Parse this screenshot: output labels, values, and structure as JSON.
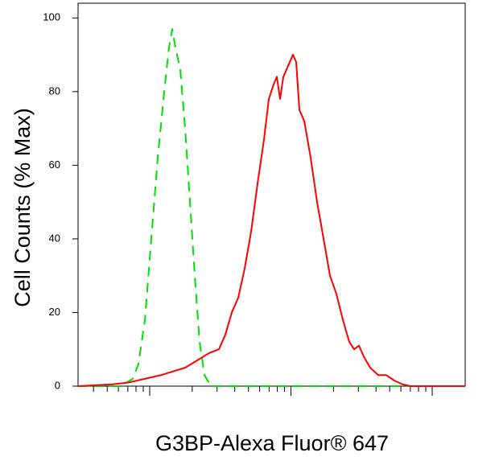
{
  "chart_data": {
    "type": "line",
    "xlabel": "G3BP-Alexa Fluor® 647",
    "ylabel": "Cell Counts (% Max)",
    "xlog": true,
    "xlim": [
      311,
      171200
    ],
    "xticks": [
      1000,
      10000,
      100000
    ],
    "xtick_labels": false,
    "xminorticks": [
      400,
      500,
      600,
      700,
      800,
      900,
      2000,
      3000,
      4000,
      5000,
      6000,
      7000,
      8000,
      9000,
      20000,
      30000,
      40000,
      50000,
      60000,
      70000,
      80000,
      90000
    ],
    "ylim": [
      0,
      104
    ],
    "yticks": [
      0,
      20,
      40,
      60,
      80,
      100
    ],
    "series": [
      {
        "color": "#00e000",
        "dash": true,
        "x": [
          311,
          624,
          759,
          832,
          925,
          1026,
          1140,
          1267,
          1370,
          1444,
          1521,
          1646,
          1781,
          1928,
          2085,
          2255,
          2441,
          2710,
          4462,
          171200
        ],
        "values": [
          0,
          0,
          2,
          6,
          18,
          40,
          62,
          80,
          92,
          97,
          92,
          86,
          70,
          50,
          30,
          12,
          3,
          0,
          0,
          0
        ]
      },
      {
        "color": "#ff0000",
        "dash": false,
        "x": [
          311,
          547,
          711,
          925,
          1202,
          1462,
          1781,
          2167,
          2641,
          3090,
          3433,
          3811,
          4236,
          4703,
          5224,
          5800,
          6444,
          6970,
          7543,
          7943,
          8375,
          8830,
          9550,
          10330,
          10890,
          11480,
          12420,
          13790,
          15310,
          17020,
          18880,
          20990,
          23310,
          25880,
          27990,
          30300,
          32790,
          36390,
          41500,
          47300,
          53950,
          61500,
          70150,
          171200
        ],
        "values": [
          0,
          0.5,
          1,
          2,
          3,
          4,
          5,
          7,
          9,
          10,
          14,
          20,
          24,
          32,
          42,
          55,
          67,
          78,
          82,
          84,
          78,
          84,
          87,
          90,
          88,
          75,
          72,
          62,
          50,
          40,
          30,
          25,
          18,
          12,
          10,
          11,
          8,
          5,
          3,
          3,
          1.5,
          0.5,
          0,
          0
        ]
      }
    ]
  }
}
